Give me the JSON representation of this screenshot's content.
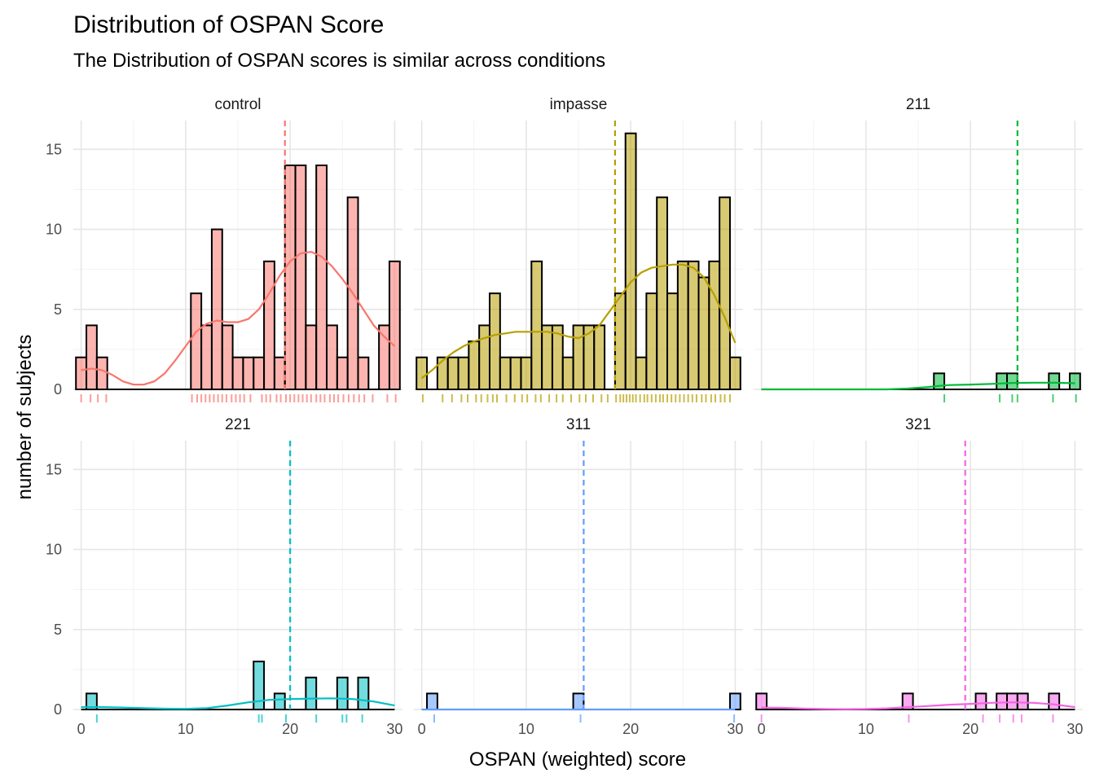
{
  "chart_data": {
    "type": "bar",
    "title": "Distribution of OSPAN Score",
    "subtitle": "The Distribution of OSPAN scores is similar across conditions",
    "xlabel": "OSPAN (weighted) score",
    "ylabel": "number of subjects",
    "xlim": [
      -0.75,
      30.75
    ],
    "ylim": [
      0,
      16.8
    ],
    "x_ticks": [
      0,
      10,
      20,
      30
    ],
    "y_ticks": [
      0,
      5,
      10,
      15
    ],
    "grid": true,
    "bin_width": 1.0,
    "facets": [
      {
        "name": "control",
        "color": "#F8766D",
        "mean": 19.5,
        "bins": [
          {
            "x": 0,
            "count": 2
          },
          {
            "x": 1,
            "count": 4
          },
          {
            "x": 2,
            "count": 2
          },
          {
            "x": 11,
            "count": 6
          },
          {
            "x": 12,
            "count": 4
          },
          {
            "x": 13,
            "count": 10
          },
          {
            "x": 14,
            "count": 4
          },
          {
            "x": 15,
            "count": 2
          },
          {
            "x": 16,
            "count": 2
          },
          {
            "x": 17,
            "count": 2
          },
          {
            "x": 18,
            "count": 8
          },
          {
            "x": 19,
            "count": 2
          },
          {
            "x": 20,
            "count": 14
          },
          {
            "x": 21,
            "count": 14
          },
          {
            "x": 22,
            "count": 4
          },
          {
            "x": 23,
            "count": 14
          },
          {
            "x": 24,
            "count": 4
          },
          {
            "x": 25,
            "count": 2
          },
          {
            "x": 26,
            "count": 12
          },
          {
            "x": 27,
            "count": 2
          },
          {
            "x": 29,
            "count": 4
          },
          {
            "x": 30,
            "count": 8
          }
        ],
        "density": [
          [
            0,
            1.2
          ],
          [
            1,
            1.3
          ],
          [
            2,
            1.2
          ],
          [
            3,
            0.9
          ],
          [
            4,
            0.5
          ],
          [
            5,
            0.3
          ],
          [
            6,
            0.3
          ],
          [
            7,
            0.5
          ],
          [
            8,
            1.0
          ],
          [
            9,
            1.8
          ],
          [
            10,
            2.7
          ],
          [
            11,
            3.6
          ],
          [
            12,
            4.1
          ],
          [
            13,
            4.3
          ],
          [
            14,
            4.2
          ],
          [
            15,
            4.2
          ],
          [
            16,
            4.4
          ],
          [
            17,
            5.0
          ],
          [
            18,
            6.0
          ],
          [
            19,
            7.1
          ],
          [
            20,
            8.0
          ],
          [
            21,
            8.5
          ],
          [
            22,
            8.6
          ],
          [
            23,
            8.3
          ],
          [
            24,
            7.7
          ],
          [
            25,
            6.9
          ],
          [
            26,
            6.0
          ],
          [
            27,
            5.0
          ],
          [
            28,
            4.0
          ],
          [
            29,
            3.3
          ],
          [
            30,
            2.7
          ]
        ],
        "rug": [
          0,
          0.9,
          1.6,
          2.4,
          10.6,
          11.1,
          11.5,
          11.9,
          12.3,
          12.7,
          13.1,
          13.5,
          13.9,
          14.4,
          14.8,
          15.2,
          15.6,
          16.2,
          17.3,
          17.7,
          18.1,
          18.7,
          19.1,
          19.6,
          20.0,
          20.4,
          20.8,
          21.2,
          21.6,
          22.0,
          22.5,
          22.9,
          23.3,
          23.8,
          24.2,
          24.6,
          25.1,
          25.6,
          26.1,
          26.6,
          27.1,
          27.9,
          29.3,
          30.1
        ]
      },
      {
        "name": "impasse",
        "color": "#B79F00",
        "mean": 18.5,
        "bins": [
          {
            "x": 0,
            "count": 2
          },
          {
            "x": 2,
            "count": 2
          },
          {
            "x": 3,
            "count": 2
          },
          {
            "x": 4,
            "count": 2
          },
          {
            "x": 5,
            "count": 3
          },
          {
            "x": 6,
            "count": 4
          },
          {
            "x": 7,
            "count": 6
          },
          {
            "x": 8,
            "count": 2
          },
          {
            "x": 9,
            "count": 2
          },
          {
            "x": 10,
            "count": 2
          },
          {
            "x": 11,
            "count": 8
          },
          {
            "x": 12,
            "count": 4
          },
          {
            "x": 13,
            "count": 4
          },
          {
            "x": 14,
            "count": 2
          },
          {
            "x": 15,
            "count": 4
          },
          {
            "x": 16,
            "count": 4
          },
          {
            "x": 17,
            "count": 4
          },
          {
            "x": 19,
            "count": 6
          },
          {
            "x": 20,
            "count": 16
          },
          {
            "x": 21,
            "count": 2
          },
          {
            "x": 22,
            "count": 6
          },
          {
            "x": 23,
            "count": 12
          },
          {
            "x": 24,
            "count": 6
          },
          {
            "x": 25,
            "count": 8
          },
          {
            "x": 26,
            "count": 8
          },
          {
            "x": 27,
            "count": 7
          },
          {
            "x": 28,
            "count": 8
          },
          {
            "x": 29,
            "count": 12
          },
          {
            "x": 30,
            "count": 2
          }
        ],
        "density": [
          [
            0,
            0.7
          ],
          [
            1,
            1.2
          ],
          [
            2,
            1.8
          ],
          [
            3,
            2.3
          ],
          [
            4,
            2.7
          ],
          [
            5,
            3.0
          ],
          [
            6,
            3.2
          ],
          [
            7,
            3.4
          ],
          [
            8,
            3.5
          ],
          [
            9,
            3.6
          ],
          [
            10,
            3.6
          ],
          [
            11,
            3.6
          ],
          [
            12,
            3.6
          ],
          [
            13,
            3.5
          ],
          [
            14,
            3.3
          ],
          [
            15,
            3.2
          ],
          [
            16,
            3.5
          ],
          [
            17,
            4.0
          ],
          [
            18,
            4.9
          ],
          [
            19,
            5.8
          ],
          [
            20,
            6.7
          ],
          [
            21,
            7.3
          ],
          [
            22,
            7.6
          ],
          [
            23,
            7.7
          ],
          [
            24,
            7.8
          ],
          [
            25,
            7.8
          ],
          [
            26,
            7.6
          ],
          [
            27,
            7.0
          ],
          [
            28,
            5.9
          ],
          [
            29,
            4.5
          ],
          [
            30,
            2.9
          ]
        ],
        "rug": [
          0.1,
          2.0,
          2.9,
          3.8,
          4.4,
          5.2,
          5.7,
          6.3,
          6.8,
          7.2,
          8.1,
          8.9,
          9.6,
          10.1,
          10.9,
          11.4,
          12.2,
          12.9,
          13.5,
          14.3,
          15.1,
          15.7,
          16.4,
          17.2,
          17.8,
          18.6,
          19.0,
          19.3,
          19.6,
          19.9,
          20.2,
          20.5,
          20.9,
          21.3,
          21.6,
          22.0,
          22.4,
          22.8,
          23.1,
          23.5,
          23.9,
          24.3,
          24.7,
          25.1,
          25.5,
          25.9,
          26.3,
          26.8,
          27.2,
          27.7,
          28.1,
          28.6,
          29.0,
          29.5
        ]
      },
      {
        "name": "211",
        "color": "#00BA38",
        "mean": 24.5,
        "bins": [
          {
            "x": 17,
            "count": 1
          },
          {
            "x": 23,
            "count": 1
          },
          {
            "x": 24,
            "count": 1
          },
          {
            "x": 28,
            "count": 1
          },
          {
            "x": 30,
            "count": 1
          }
        ],
        "density": [
          [
            0,
            0
          ],
          [
            2,
            0
          ],
          [
            4,
            0
          ],
          [
            6,
            0
          ],
          [
            8,
            0
          ],
          [
            10,
            0
          ],
          [
            12,
            0
          ],
          [
            14,
            0.05
          ],
          [
            16,
            0.15
          ],
          [
            17,
            0.22
          ],
          [
            18,
            0.27
          ],
          [
            20,
            0.3
          ],
          [
            22,
            0.34
          ],
          [
            24,
            0.4
          ],
          [
            26,
            0.42
          ],
          [
            28,
            0.42
          ],
          [
            30,
            0.38
          ]
        ],
        "rug": [
          17.5,
          22.8,
          24.0,
          24.5,
          27.9,
          30.1
        ]
      },
      {
        "name": "221",
        "color": "#00BFC4",
        "mean": 20.0,
        "bins": [
          {
            "x": 1,
            "count": 1
          },
          {
            "x": 17,
            "count": 3
          },
          {
            "x": 19,
            "count": 1
          },
          {
            "x": 22,
            "count": 2
          },
          {
            "x": 25,
            "count": 2
          },
          {
            "x": 27,
            "count": 2
          }
        ],
        "density": [
          [
            0,
            0.15
          ],
          [
            2,
            0.15
          ],
          [
            4,
            0.12
          ],
          [
            6,
            0.08
          ],
          [
            8,
            0.05
          ],
          [
            10,
            0.04
          ],
          [
            12,
            0.08
          ],
          [
            14,
            0.25
          ],
          [
            16,
            0.45
          ],
          [
            18,
            0.6
          ],
          [
            20,
            0.65
          ],
          [
            22,
            0.68
          ],
          [
            24,
            0.7
          ],
          [
            26,
            0.65
          ],
          [
            28,
            0.5
          ],
          [
            30,
            0.25
          ]
        ],
        "rug": [
          1.5,
          17.0,
          17.3,
          19.6,
          22.5,
          25.0,
          25.4,
          26.9
        ]
      },
      {
        "name": "311",
        "color": "#619CFF",
        "mean": 15.5,
        "bins": [
          {
            "x": 1,
            "count": 1
          },
          {
            "x": 15,
            "count": 1
          },
          {
            "x": 30,
            "count": 1
          }
        ],
        "density": [
          [
            0,
            0
          ],
          [
            5,
            0
          ],
          [
            10,
            0
          ],
          [
            15,
            0
          ],
          [
            20,
            0
          ],
          [
            25,
            0
          ],
          [
            30,
            0
          ]
        ],
        "rug": [
          1.2,
          15.2,
          29.9
        ]
      },
      {
        "name": "321",
        "color": "#F564E3",
        "mean": 19.5,
        "bins": [
          {
            "x": 0,
            "count": 1
          },
          {
            "x": 14,
            "count": 1
          },
          {
            "x": 21,
            "count": 1
          },
          {
            "x": 23,
            "count": 1
          },
          {
            "x": 24,
            "count": 1
          },
          {
            "x": 25,
            "count": 1
          },
          {
            "x": 28,
            "count": 1
          }
        ],
        "density": [
          [
            0,
            0.12
          ],
          [
            2,
            0.1
          ],
          [
            4,
            0.06
          ],
          [
            6,
            0.03
          ],
          [
            8,
            0.02
          ],
          [
            10,
            0.03
          ],
          [
            12,
            0.07
          ],
          [
            14,
            0.15
          ],
          [
            16,
            0.22
          ],
          [
            18,
            0.3
          ],
          [
            20,
            0.35
          ],
          [
            22,
            0.42
          ],
          [
            24,
            0.45
          ],
          [
            26,
            0.42
          ],
          [
            28,
            0.32
          ],
          [
            30,
            0.15
          ]
        ],
        "rug": [
          0.0,
          14.1,
          21.2,
          22.8,
          24.1,
          24.9,
          27.9
        ]
      }
    ]
  }
}
